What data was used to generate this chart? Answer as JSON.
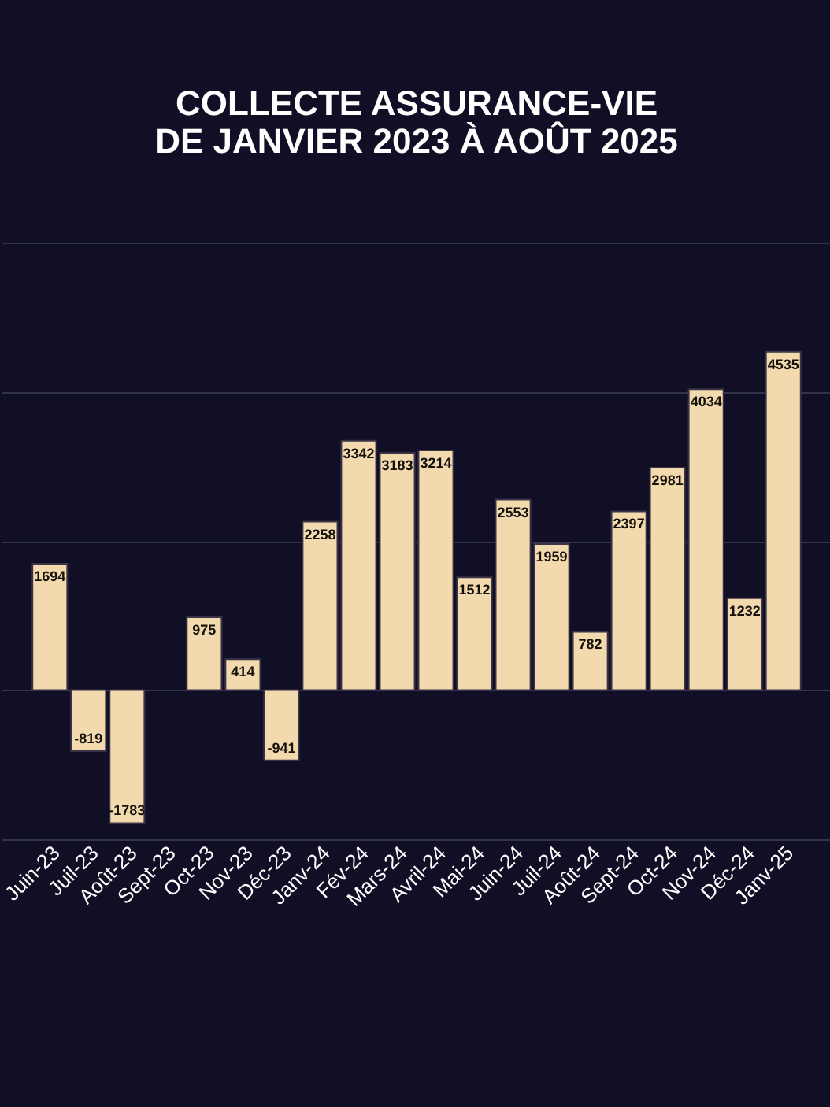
{
  "chart_data": {
    "type": "bar",
    "title": [
      "COLLECTE ASSURANCE-VIE",
      "DE JANVIER 2023 À AOÛT 2025"
    ],
    "categories": [
      "Juin-23",
      "Juil-23",
      "Août-23",
      "Sept-23",
      "Oct-23",
      "Nov-23",
      "Déc-23",
      "Janv-24",
      "Fév-24",
      "Mars-24",
      "Avril-24",
      "Mai-24",
      "Juin-24",
      "Juil-24",
      "Août-24",
      "Sept-24",
      "Oct-24",
      "Nov-24",
      "Déc-24",
      "Janv-25"
    ],
    "values": [
      1694,
      -819,
      -1783,
      null,
      975,
      414,
      -941,
      2258,
      3342,
      3183,
      3214,
      1512,
      2553,
      1959,
      782,
      2397,
      2981,
      4034,
      1232,
      4535
    ],
    "value_labels": [
      "1694",
      "-819",
      "-1783",
      null,
      "975",
      "414",
      "-941",
      "2258",
      "3342",
      "3183",
      "3214",
      "1512",
      "2553",
      "1959",
      "782",
      "2397",
      "2981",
      "4034",
      "1232",
      "4535"
    ],
    "color": "#f3d9ae",
    "ylim": [
      -2000,
      6000
    ],
    "yticks": [
      {
        "value": -2000,
        "label": null
      },
      {
        "value": 0,
        "label": null
      },
      {
        "value": 2000,
        "label": null
      },
      {
        "value": 4000,
        "label": null
      },
      {
        "value": 6000,
        "label": null
      }
    ],
    "tick_labels": "x",
    "grid": "y"
  }
}
